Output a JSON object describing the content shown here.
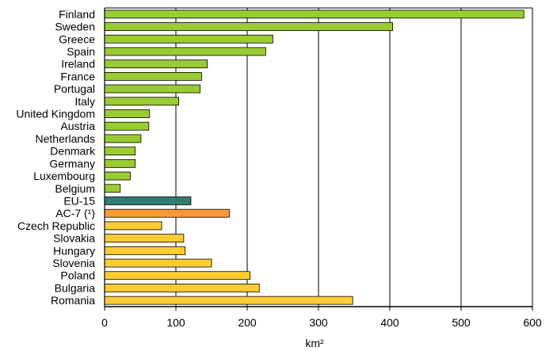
{
  "chart_data": {
    "type": "bar",
    "orientation": "horizontal",
    "categories": [
      "Finland",
      "Sweden",
      "Greece",
      "Spain",
      "Ireland",
      "France",
      "Portugal",
      "Italy",
      "United Kingdom",
      "Austria",
      "Netherlands",
      "Denmark",
      "Germany",
      "Luxembourg",
      "Belgium",
      "EU-15",
      "AC-7 (¹)",
      "Czech Republic",
      "Slovakia",
      "Hungary",
      "Slovenia",
      "Poland",
      "Bulgaria",
      "Romania"
    ],
    "values": [
      588,
      404,
      236,
      226,
      144,
      136,
      134,
      104,
      63,
      62,
      51,
      43,
      43,
      36,
      22,
      121,
      175,
      80,
      111,
      113,
      150,
      204,
      217,
      348
    ],
    "colors": [
      "#99cc33",
      "#99cc33",
      "#99cc33",
      "#99cc33",
      "#99cc33",
      "#99cc33",
      "#99cc33",
      "#99cc33",
      "#99cc33",
      "#99cc33",
      "#99cc33",
      "#99cc33",
      "#99cc33",
      "#99cc33",
      "#99cc33",
      "#2e7f72",
      "#ff9933",
      "#ffcc33",
      "#ffcc33",
      "#ffcc33",
      "#ffcc33",
      "#ffcc33",
      "#ffcc33",
      "#ffcc33"
    ],
    "xlabel": "km²",
    "xlim": [
      0,
      600
    ],
    "xticks": [
      0,
      100,
      200,
      300,
      400,
      500,
      600
    ],
    "grid": "vertical"
  }
}
